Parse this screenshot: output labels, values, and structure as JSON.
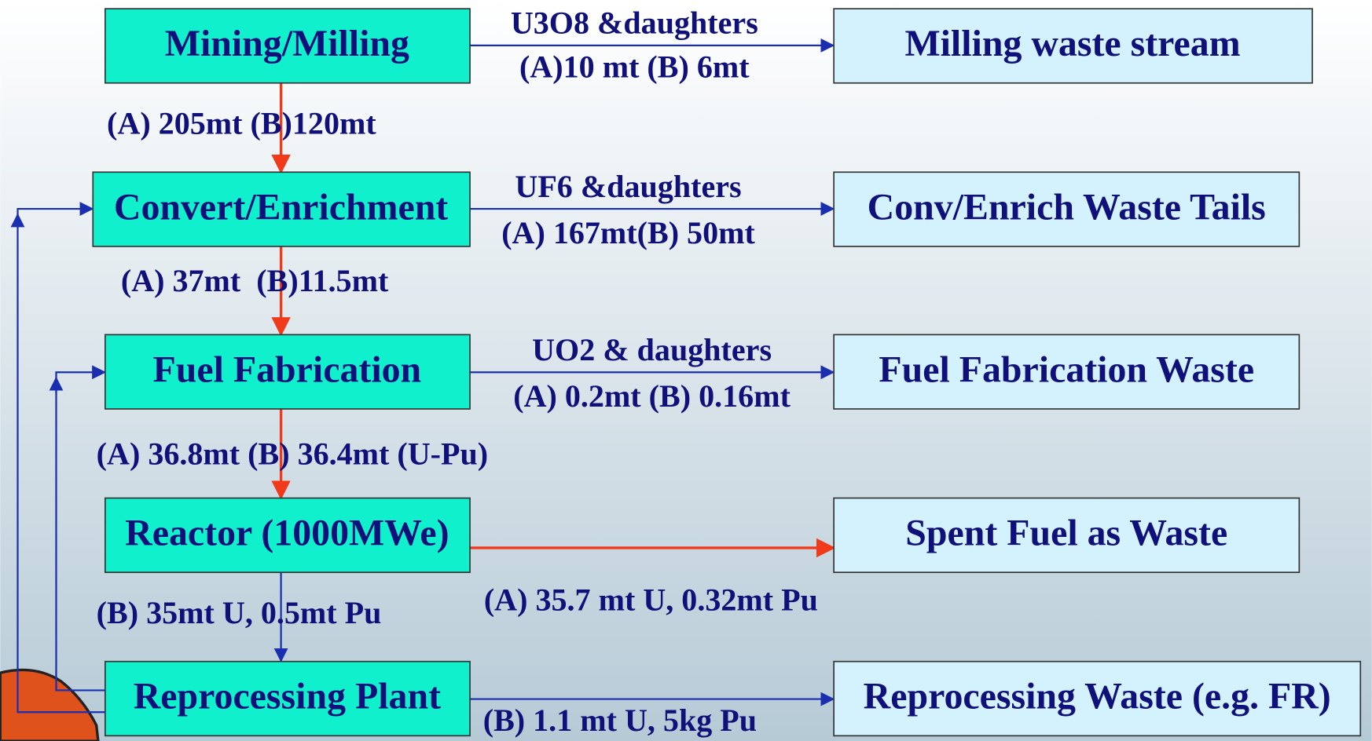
{
  "nodes": [
    {
      "label": "Mining/Milling"
    },
    {
      "label": "Convert/Enrichment"
    },
    {
      "label": "Fuel Fabrication"
    },
    {
      "label": "Reactor (1000MWe)"
    },
    {
      "label": "Reprocessing Plant"
    }
  ],
  "waste": [
    {
      "label": "Milling waste stream"
    },
    {
      "label": "Conv/Enrich Waste Tails"
    },
    {
      "label": "Fuel Fabrication Waste"
    },
    {
      "label": "Spent Fuel as Waste"
    },
    {
      "label": "Reprocessing Waste (e.g. FR)"
    }
  ],
  "flows": [
    {
      "label": "U3O8 &daughters"
    },
    {
      "label": "(A)10 mt (B) 6mt"
    },
    {
      "label": "(A) 205mt (B)120mt"
    },
    {
      "label": "UF6 &daughters"
    },
    {
      "label": "(A) 167mt(B) 50mt"
    },
    {
      "label": "(A) 37mt  (B)11.5mt"
    },
    {
      "label": "UO2 & daughters"
    },
    {
      "label": "(A) 0.2mt (B) 0.16mt"
    },
    {
      "label": "(A) 36.8mt (B) 36.4mt (U-Pu)"
    },
    {
      "label": "(A) 35.7 mt U, 0.32mt Pu"
    },
    {
      "label": "(B) 35mt U, 0.5mt Pu"
    },
    {
      "label": "(B) 1.1 mt U, 5kg Pu"
    }
  ]
}
